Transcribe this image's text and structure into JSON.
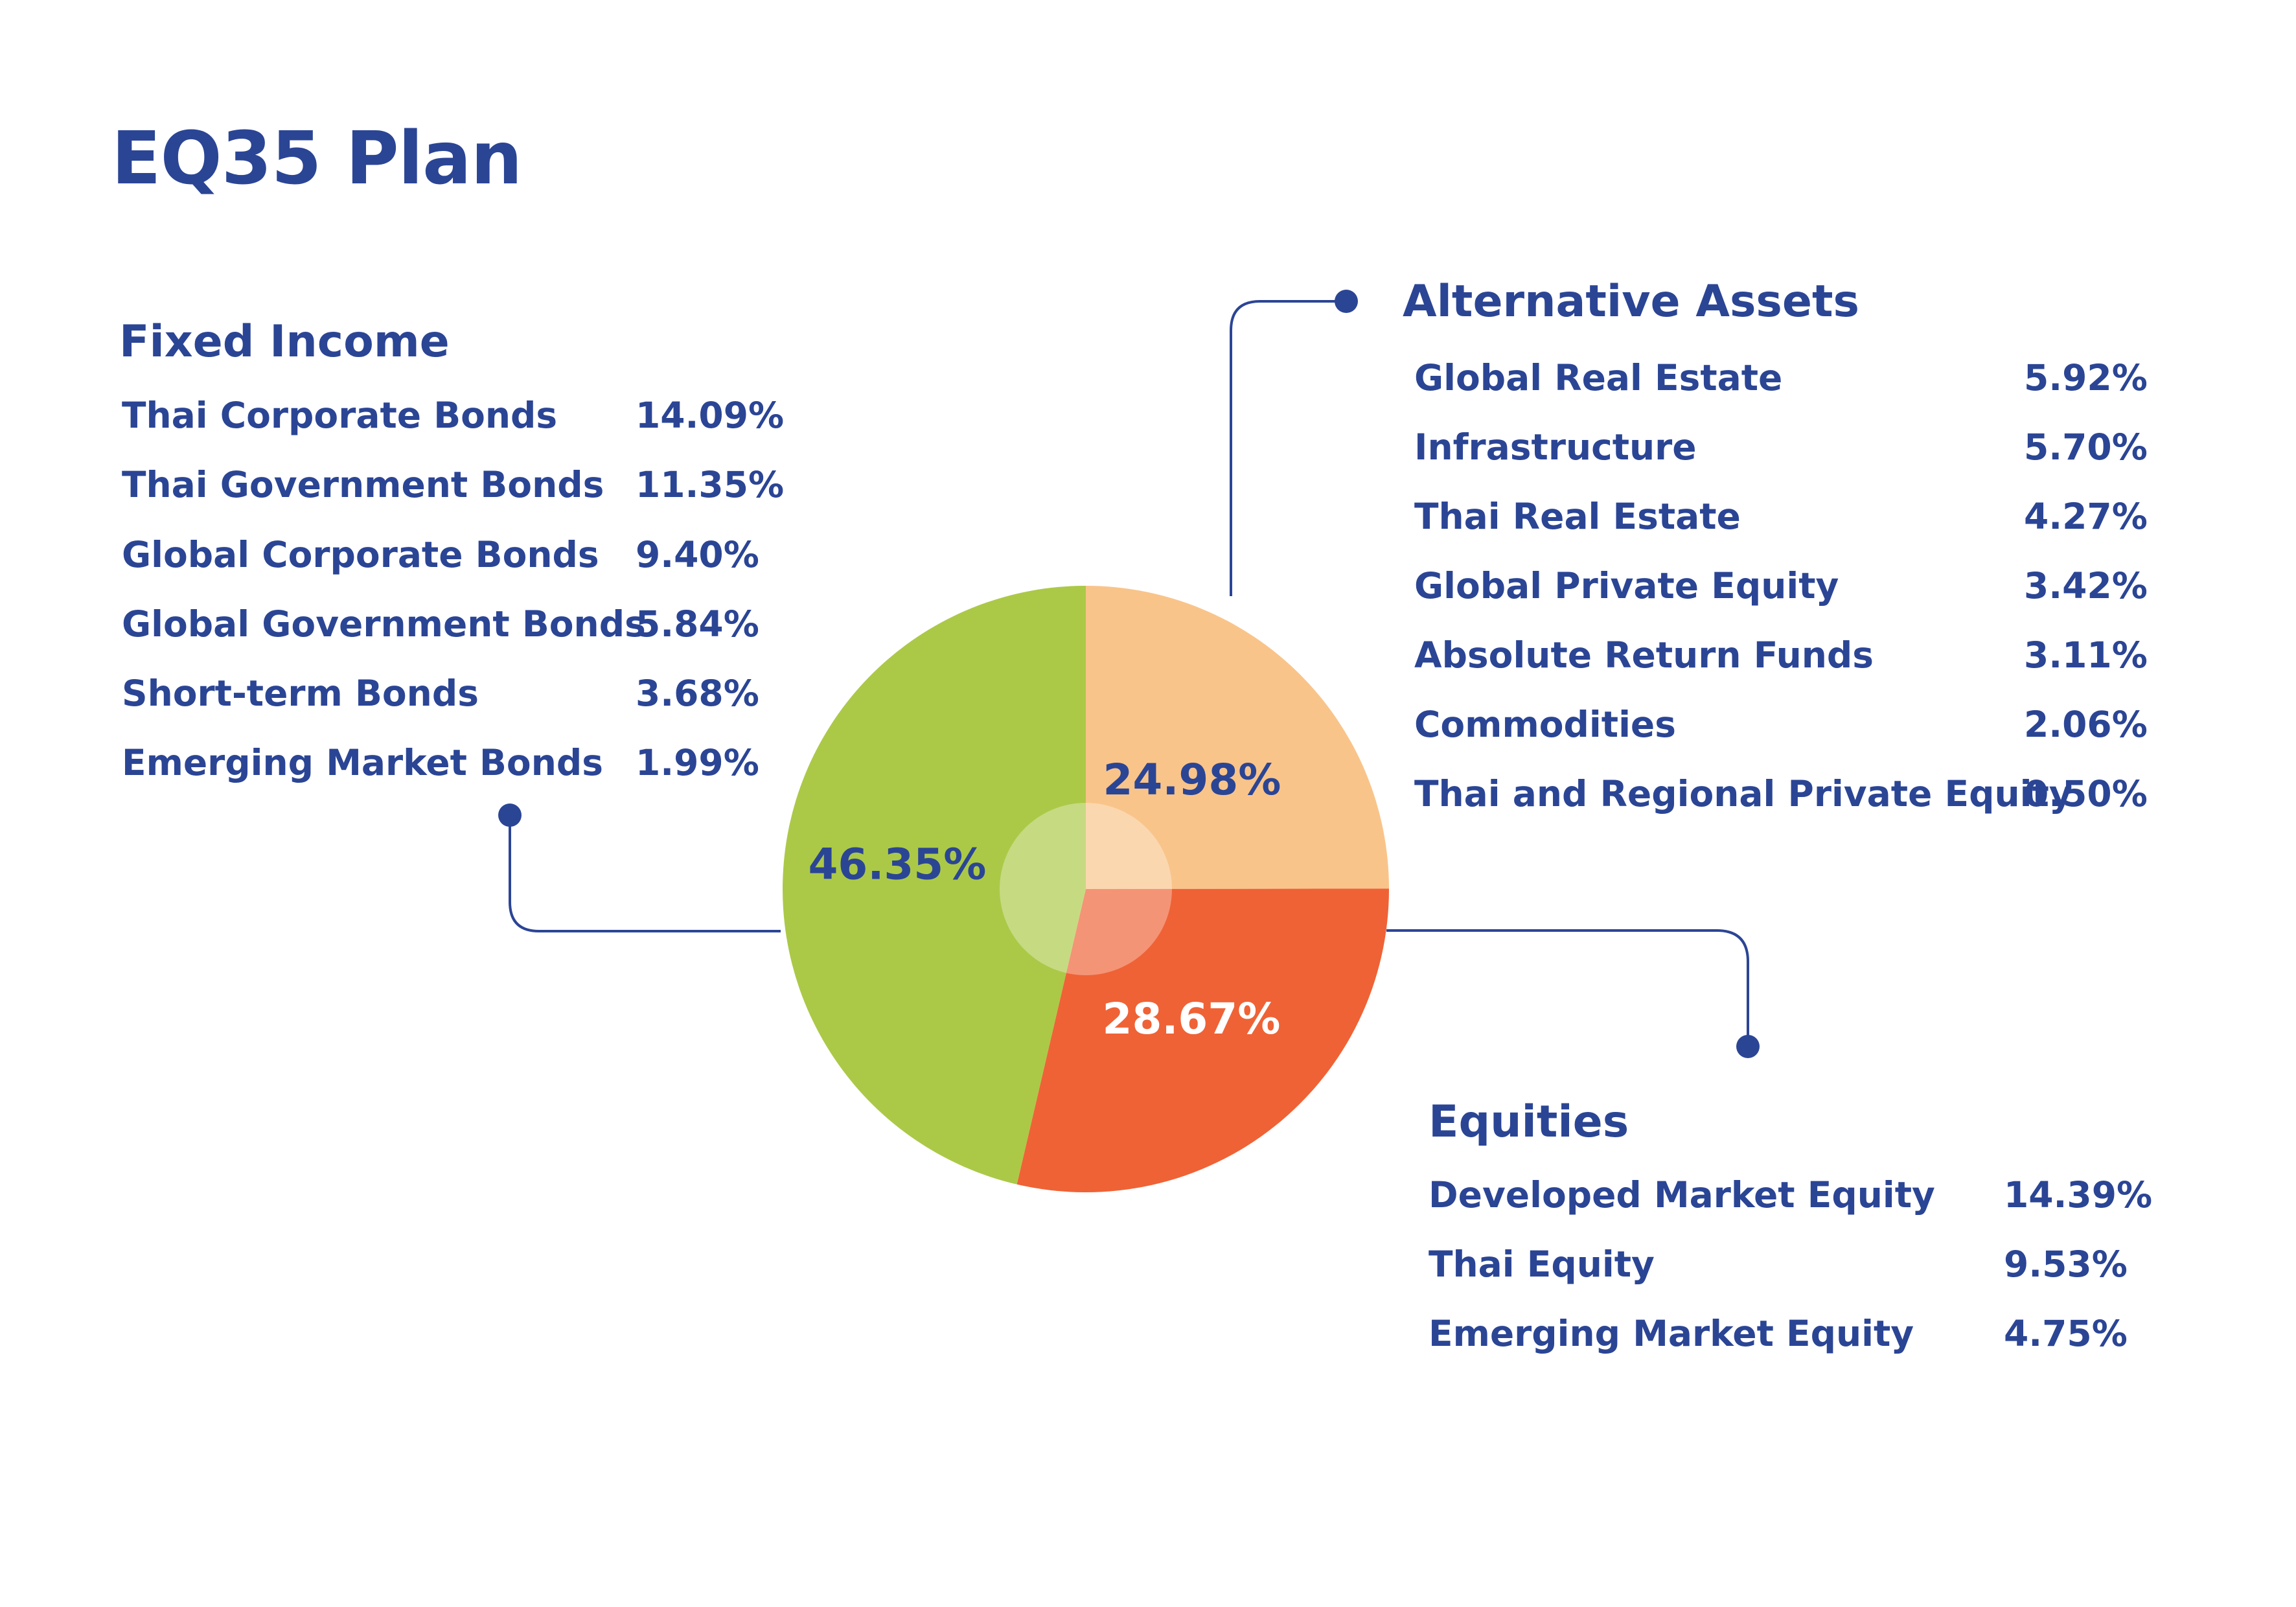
{
  "title": "EQ35 Plan",
  "colors": {
    "text": "#2b4595",
    "fixed_income": "#abc947",
    "alternative_assets": "#f9c48a",
    "equities": "#ef6236",
    "connector": "#2b4595"
  },
  "groups": {
    "fixed_income": {
      "title": "Fixed Income",
      "items": [
        {
          "label": "Thai Corporate Bonds",
          "value": "14.09%"
        },
        {
          "label": "Thai Government Bonds",
          "value": "11.35%"
        },
        {
          "label": "Global Corporate Bonds",
          "value": "9.40%"
        },
        {
          "label": "Global Government Bonds",
          "value": "5.84%"
        },
        {
          "label": "Short-term Bonds",
          "value": "3.68%"
        },
        {
          "label": "Emerging Market Bonds",
          "value": "1.99%"
        }
      ]
    },
    "alternative_assets": {
      "title": "Alternative Assets",
      "items": [
        {
          "label": "Global Real Estate",
          "value": "5.92%"
        },
        {
          "label": "Infrastructure",
          "value": "5.70%"
        },
        {
          "label": "Thai Real Estate",
          "value": "4.27%"
        },
        {
          "label": "Global Private Equity",
          "value": "3.42%"
        },
        {
          "label": "Absolute Return Funds",
          "value": "3.11%"
        },
        {
          "label": "Commodities",
          "value": "2.06%"
        },
        {
          "label": "Thai and Regional Private Equity",
          "value": "0.50%"
        }
      ]
    },
    "equities": {
      "title": "Equities",
      "items": [
        {
          "label": "Developed Market Equity",
          "value": "14.39%"
        },
        {
          "label": "Thai Equity",
          "value": "9.53%"
        },
        {
          "label": "Emerging Market Equity",
          "value": "4.75%"
        }
      ]
    }
  },
  "chart_data": {
    "type": "pie",
    "title": "EQ35 Plan",
    "categories": [
      "Alternative Assets",
      "Equities",
      "Fixed Income"
    ],
    "values": [
      24.98,
      28.67,
      46.35
    ],
    "labels": [
      "24.98%",
      "28.67%",
      "46.35%"
    ],
    "colors": [
      "#f9c48a",
      "#ef6236",
      "#abc947"
    ],
    "label_colors": [
      "#2b4595",
      "#ffffff",
      "#2b4595"
    ],
    "start": "12 o'clock, clockwise",
    "center_highlight": true
  }
}
